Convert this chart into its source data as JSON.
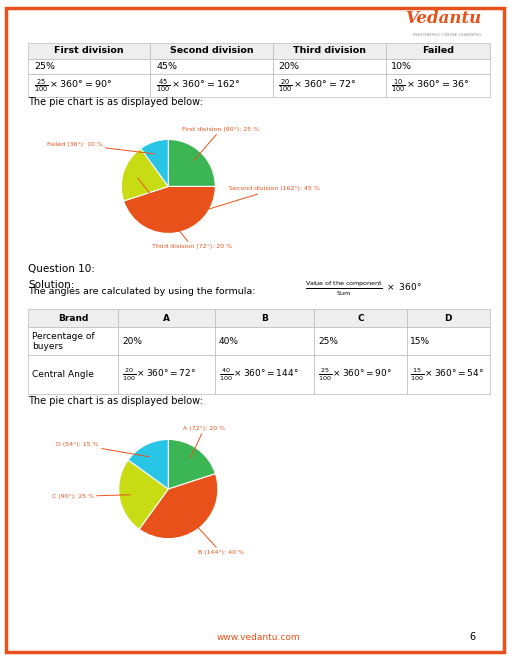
{
  "page_bg": "#ffffff",
  "border_color": "#e8521a",
  "table1_headers": [
    "First division",
    "Second division",
    "Third division",
    "Failed"
  ],
  "table1_row1": [
    "25%",
    "45%",
    "20%",
    "10%"
  ],
  "chart1_sizes": [
    25,
    45,
    20,
    10
  ],
  "chart1_colors": [
    "#3cb554",
    "#e8521a",
    "#c8dc14",
    "#29c5e6"
  ],
  "chart1_startangle": 90,
  "chart1_labels": [
    "First division (90°): 25 %",
    "Second division (162°): 45 %",
    "Third division (72°): 20 %",
    "Failed (36°): 10 %"
  ],
  "chart2_sizes": [
    20,
    40,
    25,
    15
  ],
  "chart2_colors": [
    "#3cb554",
    "#e8521a",
    "#c8dc14",
    "#29c5e6"
  ],
  "chart2_startangle": 90,
  "chart2_labels": [
    "A (72°): 20 %",
    "B (144°): 40 %",
    "C (90°): 25 %",
    "D (54°): 15 %"
  ],
  "footer_text": "www.vedantu.com",
  "page_number": "6"
}
